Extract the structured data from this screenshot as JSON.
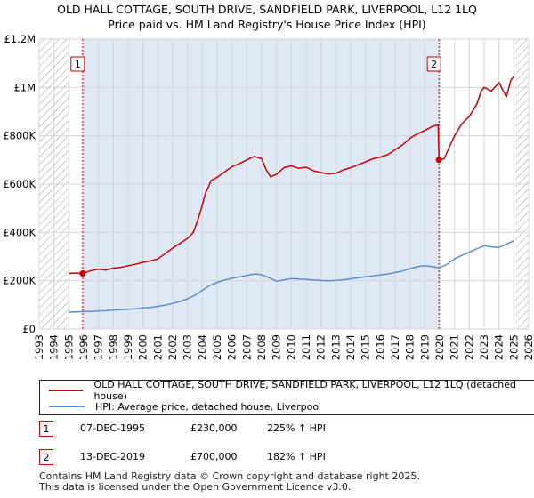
{
  "title": {
    "line1": "OLD HALL COTTAGE, SOUTH DRIVE, SANDFIELD PARK, LIVERPOOL, L12 1LQ",
    "line2": "Price paid vs. HM Land Registry's House Price Index (HPI)"
  },
  "colors": {
    "property": "#cc0000",
    "hpi": "#5b8fd0",
    "shade": "#dfe8f5",
    "grid": "#d4d4d4"
  },
  "legend": {
    "property_label": "OLD HALL COTTAGE, SOUTH DRIVE, SANDFIELD PARK, LIVERPOOL, L12 1LQ (detached house)",
    "hpi_label": "HPI: Average price, detached house, Liverpool"
  },
  "transactions": [
    {
      "num": "1",
      "date": "07-DEC-1995",
      "price": "£230,000",
      "hpi_change": "225% ↑ HPI"
    },
    {
      "num": "2",
      "date": "13-DEC-2019",
      "price": "£700,000",
      "hpi_change": "182% ↑ HPI"
    }
  ],
  "footer": {
    "line1": "Contains HM Land Registry data © Crown copyright and database right 2025.",
    "line2": "This data is licensed under the Open Government Licence v3.0."
  },
  "chart_data": {
    "type": "line",
    "title": "OLD HALL COTTAGE, SOUTH DRIVE, SANDFIELD PARK, LIVERPOOL, L12 1LQ — Price paid vs. HM Land Registry's House Price Index (HPI)",
    "xlabel": "",
    "ylabel": "",
    "xlim": [
      1993,
      2026
    ],
    "ylim": [
      0,
      1200000
    ],
    "x_ticks": [
      "1993",
      "1994",
      "1995",
      "1996",
      "1997",
      "1998",
      "1999",
      "2000",
      "2001",
      "2002",
      "2003",
      "2004",
      "2005",
      "2006",
      "2007",
      "2008",
      "2009",
      "2010",
      "2011",
      "2012",
      "2013",
      "2014",
      "2015",
      "2016",
      "2017",
      "2018",
      "2019",
      "2020",
      "2021",
      "2022",
      "2023",
      "2024",
      "2025",
      "2026"
    ],
    "y_ticks": [
      {
        "value": 0,
        "label": "£0"
      },
      {
        "value": 200000,
        "label": "£200K"
      },
      {
        "value": 400000,
        "label": "£400K"
      },
      {
        "value": 600000,
        "label": "£600K"
      },
      {
        "value": 800000,
        "label": "£800K"
      },
      {
        "value": 1000000,
        "label": "£1M"
      },
      {
        "value": 1200000,
        "label": "£1.2M"
      }
    ],
    "grid": true,
    "hatched_ranges": [
      [
        1993,
        1995.0
      ],
      [
        2025.1,
        2026
      ]
    ],
    "markers": [
      {
        "label": "1",
        "x": 1995.93,
        "y": 230000
      },
      {
        "label": "2",
        "x": 2019.95,
        "y": 700000
      }
    ],
    "series": [
      {
        "name": "OLD HALL COTTAGE, SOUTH DRIVE, SANDFIELD PARK, LIVERPOOL, L12 1LQ (detached house)",
        "color": "#cc0000",
        "x": [
          1995.0,
          1995.5,
          1995.93,
          1996.5,
          1997.0,
          1997.5,
          1998.0,
          1998.5,
          1999.0,
          1999.5,
          2000.0,
          2000.5,
          2001.0,
          2001.5,
          2002.0,
          2002.5,
          2003.0,
          2003.4,
          2003.8,
          2004.2,
          2004.6,
          2005.0,
          2005.5,
          2006.0,
          2006.5,
          2007.0,
          2007.5,
          2008.0,
          2008.3,
          2008.6,
          2009.0,
          2009.5,
          2010.0,
          2010.5,
          2011.0,
          2011.5,
          2012.0,
          2012.5,
          2013.0,
          2013.5,
          2014.0,
          2014.5,
          2015.0,
          2015.5,
          2016.0,
          2016.5,
          2017.0,
          2017.5,
          2018.0,
          2018.5,
          2019.0,
          2019.5,
          2019.9,
          2019.95,
          2020.3,
          2020.7,
          2021.0,
          2021.5,
          2022.0,
          2022.5,
          2022.8,
          2023.0,
          2023.5,
          2024.0,
          2024.5,
          2024.8,
          2025.0
        ],
        "values": [
          230000,
          232000,
          230000,
          242000,
          248000,
          244000,
          252000,
          255000,
          262000,
          268000,
          276000,
          282000,
          290000,
          312000,
          335000,
          355000,
          375000,
          400000,
          470000,
          560000,
          615000,
          628000,
          650000,
          672000,
          685000,
          700000,
          715000,
          705000,
          660000,
          630000,
          640000,
          668000,
          675000,
          665000,
          670000,
          655000,
          648000,
          642000,
          645000,
          658000,
          668000,
          680000,
          692000,
          705000,
          712000,
          722000,
          742000,
          762000,
          790000,
          808000,
          822000,
          838000,
          845000,
          700000,
          705000,
          760000,
          800000,
          850000,
          880000,
          930000,
          985000,
          1000000,
          985000,
          1020000,
          960000,
          1030000,
          1045000
        ]
      },
      {
        "name": "HPI: Average price, detached house, Liverpool",
        "color": "#5b8fd0",
        "x": [
          1995.0,
          1995.5,
          1996.0,
          1996.5,
          1997.0,
          1997.5,
          1998.0,
          1998.5,
          1999.0,
          1999.5,
          2000.0,
          2000.5,
          2001.0,
          2001.5,
          2002.0,
          2002.5,
          2003.0,
          2003.5,
          2004.0,
          2004.5,
          2005.0,
          2005.5,
          2006.0,
          2006.5,
          2007.0,
          2007.5,
          2008.0,
          2008.5,
          2009.0,
          2009.5,
          2010.0,
          2010.5,
          2011.0,
          2011.5,
          2012.0,
          2012.5,
          2013.0,
          2013.5,
          2014.0,
          2014.5,
          2015.0,
          2015.5,
          2016.0,
          2016.5,
          2017.0,
          2017.5,
          2018.0,
          2018.5,
          2019.0,
          2019.5,
          2020.0,
          2020.5,
          2021.0,
          2021.5,
          2022.0,
          2022.5,
          2023.0,
          2023.5,
          2024.0,
          2024.5,
          2025.0
        ],
        "values": [
          70000,
          71000,
          72000,
          73000,
          75000,
          76000,
          78000,
          80000,
          82000,
          84000,
          87000,
          90000,
          94000,
          99000,
          106000,
          114000,
          125000,
          140000,
          160000,
          180000,
          193000,
          203000,
          210000,
          216000,
          222000,
          228000,
          225000,
          212000,
          198000,
          203000,
          209000,
          207000,
          205000,
          203000,
          201000,
          200000,
          201000,
          204000,
          208000,
          212000,
          216000,
          220000,
          224000,
          228000,
          234000,
          240000,
          250000,
          258000,
          262000,
          258000,
          254000,
          268000,
          290000,
          305000,
          318000,
          332000,
          345000,
          340000,
          338000,
          352000,
          365000
        ]
      }
    ]
  }
}
